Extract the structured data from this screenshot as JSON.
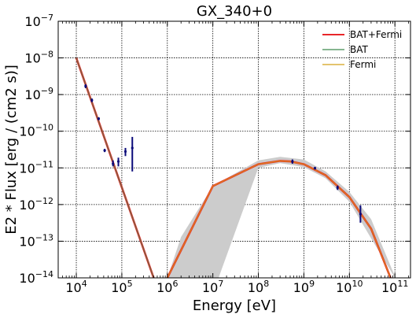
{
  "chart_data": {
    "type": "line",
    "title": "GX_340+0",
    "xlabel": "Energy [eV]",
    "ylabel": "E2 * Flux [erg / (cm2 s)]",
    "xscale": "log",
    "yscale": "log",
    "xlim": [
      4000,
      220000000000.0
    ],
    "ylim": [
      1e-14,
      1e-07
    ],
    "grid": true,
    "legend_position": "top-right",
    "x_ticks": [
      {
        "base": "10",
        "exp": "4",
        "value": 10000.0
      },
      {
        "base": "10",
        "exp": "5",
        "value": 100000.0
      },
      {
        "base": "10",
        "exp": "6",
        "value": 1000000.0
      },
      {
        "base": "10",
        "exp": "7",
        "value": 10000000.0
      },
      {
        "base": "10",
        "exp": "8",
        "value": 100000000.0
      },
      {
        "base": "10",
        "exp": "9",
        "value": 1000000000.0
      },
      {
        "base": "10",
        "exp": "10",
        "value": 10000000000.0
      },
      {
        "base": "10",
        "exp": "11",
        "value": 100000000000.0
      }
    ],
    "y_ticks": [
      {
        "base": "10",
        "exp": "−7",
        "value": 1e-07
      },
      {
        "base": "10",
        "exp": "−8",
        "value": 1e-08
      },
      {
        "base": "10",
        "exp": "−9",
        "value": 1e-09
      },
      {
        "base": "10",
        "exp": "−10",
        "value": 1e-10
      },
      {
        "base": "10",
        "exp": "−11",
        "value": 1e-11
      },
      {
        "base": "10",
        "exp": "−12",
        "value": 1e-12
      },
      {
        "base": "10",
        "exp": "−13",
        "value": 1e-13
      },
      {
        "base": "10",
        "exp": "−14",
        "value": 1e-14
      }
    ],
    "series": [
      {
        "name": "BAT+Fermi",
        "color": "#e8262a",
        "x": [
          10000.0,
          500000.0
        ],
        "y": [
          1e-08,
          1e-14
        ]
      },
      {
        "name": "BAT",
        "color": "#3d8a4e",
        "x": [
          10000.0,
          500000.0
        ],
        "y": [
          1e-08,
          1e-14
        ]
      },
      {
        "name": "Fermi",
        "color": "#d4a017",
        "x": [
          1000000.0,
          10000000.0,
          100000000.0,
          300000000.0,
          500000000.0,
          1000000000.0,
          3000000000.0,
          10000000000.0,
          30000000000.0,
          80000000000.0
        ],
        "y": [
          1e-14,
          3.2e-12,
          1.26e-11,
          1.55e-11,
          1.5e-11,
          1.26e-11,
          6.3e-12,
          1.6e-12,
          2.2e-13,
          1e-14
        ]
      }
    ],
    "fermi_band": {
      "color": "#cccccc",
      "x": [
        1000000.0,
        2000000.0,
        10000000.0,
        100000000.0,
        300000000.0,
        1000000000.0,
        3000000000.0,
        10000000000.0,
        30000000000.0,
        100000000000.0
      ],
      "upper": [
        1e-14,
        1.3e-13,
        3.2e-12,
        1.6e-11,
        2e-11,
        1.7e-11,
        8e-12,
        2.2e-12,
        4e-13,
        1.1e-14
      ],
      "lower": [
        null,
        null,
        null,
        1e-11,
        1.35e-11,
        1.05e-11,
        5.2e-12,
        1.2e-12,
        1.2e-13,
        1e-14
      ]
    },
    "points": [
      {
        "x": 16000.0,
        "y": 1.7e-09,
        "ylo": 1.5e-09,
        "yhi": 1.9e-09
      },
      {
        "x": 22000.0,
        "y": 7e-10,
        "ylo": 6.2e-10,
        "yhi": 7.8e-10
      },
      {
        "x": 31000.0,
        "y": 2.2e-10,
        "ylo": 2e-10,
        "yhi": 2.4e-10
      },
      {
        "x": 42000.0,
        "y": 3e-11,
        "ylo": 2.7e-11,
        "yhi": 3.3e-11
      },
      {
        "x": 64000.0,
        "y": 1.3e-11,
        "ylo": 1.1e-11,
        "yhi": 1.6e-11
      },
      {
        "x": 84000.0,
        "y": 1.5e-11,
        "ylo": 1.1e-11,
        "yhi": 1.9e-11
      },
      {
        "x": 120000.0,
        "y": 2.8e-11,
        "ylo": 2.1e-11,
        "yhi": 3.5e-11
      },
      {
        "x": 170000.0,
        "y": 3.5e-11,
        "ylo": 8e-12,
        "yhi": 7e-11
      },
      {
        "x": 560000000.0,
        "y": 1.5e-11,
        "ylo": 1.3e-11,
        "yhi": 1.7e-11
      },
      {
        "x": 1750000000.0,
        "y": 9.8e-12,
        "ylo": 9e-12,
        "yhi": 1.07e-11
      },
      {
        "x": 5500000000.0,
        "y": 2.9e-12,
        "ylo": 2.5e-12,
        "yhi": 3.3e-12
      },
      {
        "x": 17500000000.0,
        "y": 5.5e-13,
        "ylo": 3.2e-13,
        "yhi": 9.5e-13
      }
    ]
  }
}
